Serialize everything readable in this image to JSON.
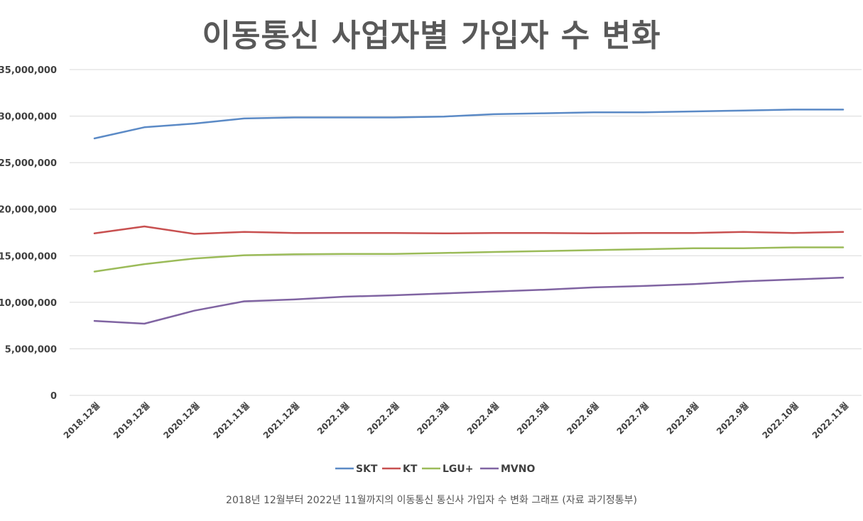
{
  "chart_data": {
    "type": "line",
    "title": "이동통신 사업자별 가입자 수 변화",
    "categories": [
      "2018.12월",
      "2019.12월",
      "2020.12월",
      "2021.11월",
      "2021.12월",
      "2022.1월",
      "2022.2월",
      "2022.3월",
      "2022.4월",
      "2022.5월",
      "2022.6월",
      "2022.7월",
      "2022.8월",
      "2022.9월",
      "2022.10월",
      "2022.11월"
    ],
    "ylim": [
      0,
      35000000
    ],
    "yticks": [
      0,
      5000000,
      10000000,
      15000000,
      20000000,
      25000000,
      30000000,
      35000000
    ],
    "ytick_labels": [
      "0",
      "5,000,000",
      "10,000,000",
      "15,000,000",
      "20,000,000",
      "25,000,000",
      "30,000,000",
      "35,000,000"
    ],
    "grid": true,
    "legend_position": "bottom",
    "series": [
      {
        "name": "SKT",
        "color": "#5b8ac6",
        "values": [
          27600000,
          28800000,
          29200000,
          29750000,
          29850000,
          29850000,
          29850000,
          29950000,
          30200000,
          30300000,
          30400000,
          30400000,
          30500000,
          30600000,
          30700000,
          30700000
        ]
      },
      {
        "name": "KT",
        "color": "#c85050",
        "values": [
          17400000,
          18150000,
          17350000,
          17550000,
          17450000,
          17450000,
          17450000,
          17400000,
          17450000,
          17450000,
          17400000,
          17450000,
          17450000,
          17550000,
          17450000,
          17550000
        ]
      },
      {
        "name": "LGU+",
        "color": "#9bbb59",
        "values": [
          13300000,
          14100000,
          14700000,
          15050000,
          15150000,
          15200000,
          15200000,
          15300000,
          15400000,
          15500000,
          15600000,
          15700000,
          15800000,
          15800000,
          15900000,
          15900000
        ]
      },
      {
        "name": "MVNO",
        "color": "#8064a2",
        "values": [
          8000000,
          7700000,
          9100000,
          10100000,
          10300000,
          10600000,
          10750000,
          10950000,
          11150000,
          11350000,
          11600000,
          11750000,
          11950000,
          12250000,
          12450000,
          12650000
        ]
      }
    ]
  },
  "caption": "2018년 12월부터 2022년 11월까지의 이동통신 통신사 가입자 수 변화 그래프 (자료 과기정통부)"
}
